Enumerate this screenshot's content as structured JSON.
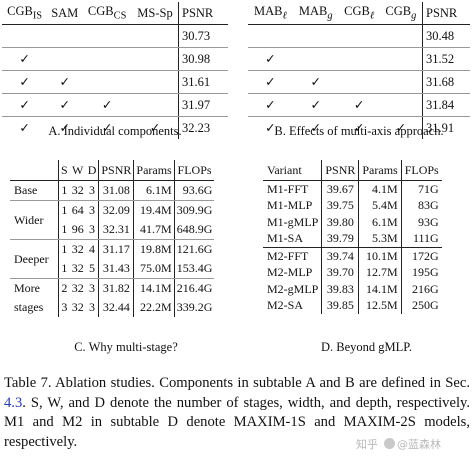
{
  "table_a": {
    "headers": [
      "CGB_IS",
      "SAM",
      "CGB_CS",
      "MS-Sp",
      "PSNR"
    ],
    "rows": [
      {
        "c1": "",
        "c2": "",
        "c3": "",
        "c4": "",
        "psnr": "30.73"
      },
      {
        "c1": "✓",
        "c2": "",
        "c3": "",
        "c4": "",
        "psnr": "30.98"
      },
      {
        "c1": "✓",
        "c2": "✓",
        "c3": "",
        "c4": "",
        "psnr": "31.61"
      },
      {
        "c1": "✓",
        "c2": "✓",
        "c3": "✓",
        "c4": "",
        "psnr": "31.97"
      },
      {
        "c1": "✓",
        "c2": "✓",
        "c3": "✓",
        "c4": "✓",
        "psnr": "32.23"
      }
    ],
    "caption": "A. Individual components."
  },
  "table_b": {
    "headers": [
      "MAB_ℓ",
      "MAB_g",
      "CGB_ℓ",
      "CGB_g",
      "PSNR"
    ],
    "rows": [
      {
        "c1": "",
        "c2": "",
        "c3": "",
        "c4": "",
        "psnr": "30.48"
      },
      {
        "c1": "✓",
        "c2": "",
        "c3": "",
        "c4": "",
        "psnr": "31.52"
      },
      {
        "c1": "✓",
        "c2": "✓",
        "c3": "",
        "c4": "",
        "psnr": "31.68"
      },
      {
        "c1": "✓",
        "c2": "✓",
        "c3": "✓",
        "c4": "",
        "psnr": "31.84"
      },
      {
        "c1": "✓",
        "c2": "✓",
        "c3": "✓",
        "c4": "✓",
        "psnr": "31.91"
      }
    ],
    "caption": "B. Effects of multi-axis approach."
  },
  "table_c": {
    "headers": [
      "",
      "S",
      "W",
      "D",
      "PSNR",
      "Params",
      "FLOPs"
    ],
    "groups": [
      {
        "label": "Base",
        "rows": [
          {
            "s": "1",
            "w": "32",
            "d": "3",
            "psnr": "31.08",
            "params": "6.1M",
            "flops": "93.6G"
          }
        ]
      },
      {
        "label": "Wider",
        "rows": [
          {
            "s": "1",
            "w": "64",
            "d": "3",
            "psnr": "32.09",
            "params": "19.4M",
            "flops": "309.9G"
          },
          {
            "s": "1",
            "w": "96",
            "d": "3",
            "psnr": "32.31",
            "params": "41.7M",
            "flops": "648.9G"
          }
        ]
      },
      {
        "label": "Deeper",
        "rows": [
          {
            "s": "1",
            "w": "32",
            "d": "4",
            "psnr": "31.17",
            "params": "19.8M",
            "flops": "121.6G"
          },
          {
            "s": "1",
            "w": "32",
            "d": "5",
            "psnr": "31.43",
            "params": "75.0M",
            "flops": "153.4G"
          }
        ]
      },
      {
        "label_line1": "More",
        "label_line2": "stages",
        "rows": [
          {
            "s": "2",
            "w": "32",
            "d": "3",
            "psnr": "31.82",
            "params": "14.1M",
            "flops": "216.4G"
          },
          {
            "s": "3",
            "w": "32",
            "d": "3",
            "psnr": "32.44",
            "params": "22.2M",
            "flops": "339.2G"
          }
        ]
      }
    ],
    "caption": "C. Why multi-stage?"
  },
  "table_d": {
    "headers": [
      "Variant",
      "PSNR",
      "Params",
      "FLOPs"
    ],
    "rows": [
      {
        "variant": "M1-FFT",
        "psnr": "39.67",
        "params": "4.1M",
        "flops": "71G"
      },
      {
        "variant": "M1-MLP",
        "psnr": "39.75",
        "params": "5.4M",
        "flops": "83G"
      },
      {
        "variant": "M1-gMLP",
        "psnr": "39.80",
        "params": "6.1M",
        "flops": "93G"
      },
      {
        "variant": "M1-SA",
        "psnr": "39.79",
        "params": "5.3M",
        "flops": "111G"
      },
      {
        "variant": "M2-FFT",
        "psnr": "39.74",
        "params": "10.1M",
        "flops": "172G"
      },
      {
        "variant": "M2-MLP",
        "psnr": "39.70",
        "params": "12.7M",
        "flops": "195G"
      },
      {
        "variant": "M2-gMLP",
        "psnr": "39.83",
        "params": "14.1M",
        "flops": "216G"
      },
      {
        "variant": "M2-SA",
        "psnr": "39.85",
        "params": "12.5M",
        "flops": "250G"
      }
    ],
    "caption": "D. Beyond gMLP."
  },
  "caption_text": {
    "part1": "Table 7. Ablation studies. Components in subtable A and B are defined in Sec. ",
    "ref": "4.3",
    "part2": ". S, W, and D denote the number of stages, width, and depth, respectively. M1 and M2 in subtable D denote MAXIM-1S and MAXIM-2S models, respectively."
  },
  "watermark": {
    "text1": "知乎",
    "text2": "@蓝森林"
  }
}
